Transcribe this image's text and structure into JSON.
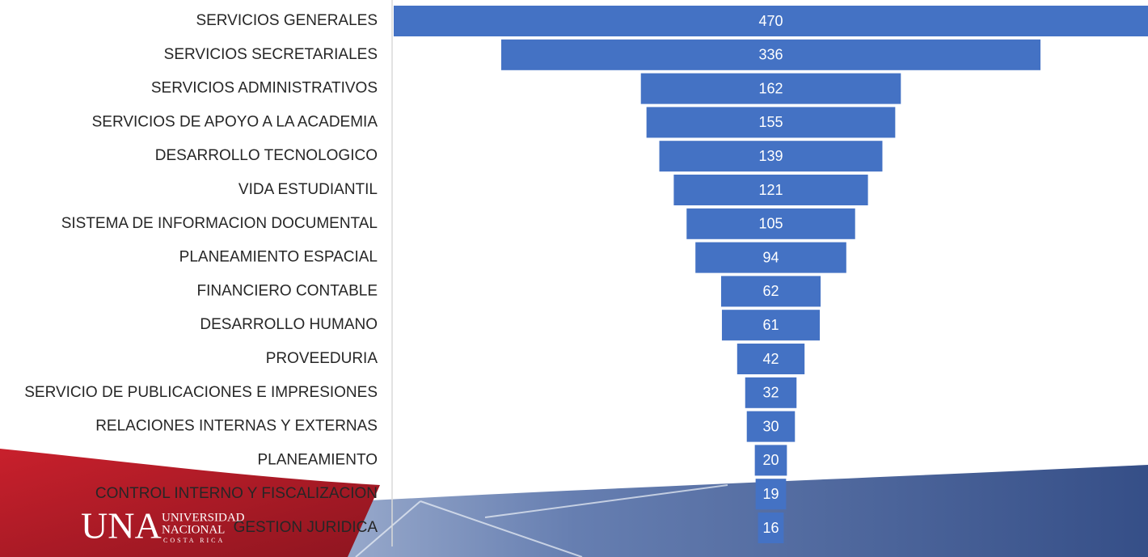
{
  "chart_data": {
    "type": "funnel",
    "categories": [
      "SERVICIOS GENERALES",
      "SERVICIOS SECRETARIALES",
      "SERVICIOS ADMINISTRATIVOS",
      "SERVICIOS DE APOYO A LA ACADEMIA",
      "DESARROLLO TECNOLOGICO",
      "VIDA ESTUDIANTIL",
      "SISTEMA DE INFORMACION DOCUMENTAL",
      "PLANEAMIENTO ESPACIAL",
      "FINANCIERO CONTABLE",
      "DESARROLLO HUMANO",
      "PROVEEDURIA",
      "SERVICIO DE PUBLICACIONES E IMPRESIONES",
      "RELACIONES INTERNAS Y EXTERNAS",
      "PLANEAMIENTO",
      "CONTROL INTERNO Y FISCALIZACION",
      "GESTION JURIDICA"
    ],
    "values": [
      470,
      336,
      162,
      155,
      139,
      121,
      105,
      94,
      62,
      61,
      42,
      32,
      30,
      20,
      19,
      16
    ],
    "color": "#4472c4"
  },
  "logo": {
    "acronym": "UNA",
    "line1": "UNIVERSIDAD",
    "line2": "NACIONAL",
    "line3": "COSTA RICA"
  }
}
